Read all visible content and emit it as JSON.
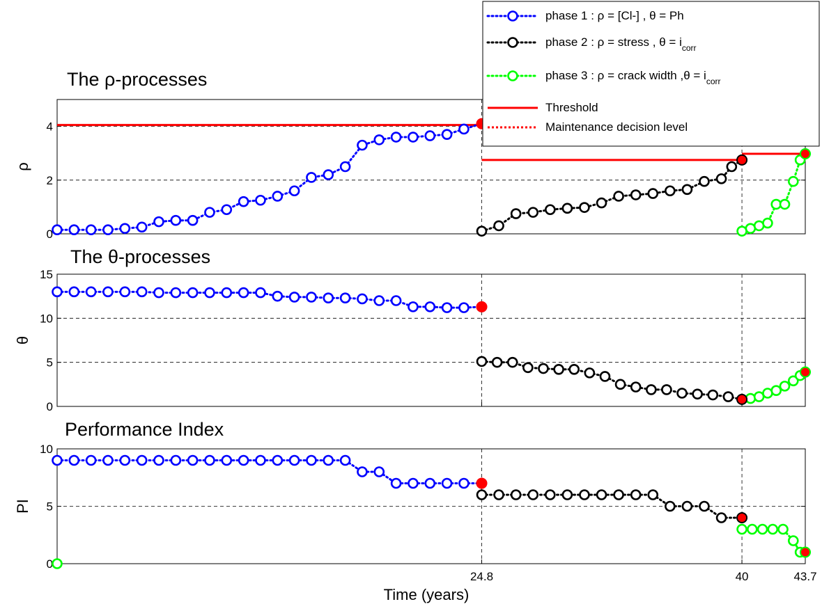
{
  "figure": {
    "xlabel": "Time (years)",
    "xticks": [
      "24.8",
      "40",
      "43.7"
    ]
  },
  "legend": {
    "entries": [
      {
        "pre": "phase 1 : ",
        "sym1": "ρ",
        "mid": " = [Cl-] , ",
        "sym2": "θ",
        "post": "  = Ph",
        "sub": "",
        "color": "#0000ff",
        "style": "dotted-marker"
      },
      {
        "pre": "phase 2 : ",
        "sym1": "ρ",
        "mid": " = stress , ",
        "sym2": "θ",
        "post": "  = i",
        "sub": "corr",
        "color": "#000000",
        "style": "dotted-marker"
      },
      {
        "pre": "phase 3 : ",
        "sym1": "ρ",
        "mid": " = crack width ,",
        "sym2": "θ",
        "post": "  = i",
        "sub": "corr",
        "color": "#00ff00",
        "style": "dotted-marker"
      },
      {
        "pre": "Threshold",
        "sym1": "",
        "mid": "",
        "sym2": "",
        "post": "",
        "sub": "",
        "color": "#ff0000",
        "style": "solid"
      },
      {
        "pre": "Maintenance decision level",
        "sym1": "",
        "mid": "",
        "sym2": "",
        "post": "",
        "sub": "",
        "color": "#ff0000",
        "style": "dotted"
      }
    ]
  },
  "chart_data": [
    {
      "type": "line",
      "title": "The ρ-processes",
      "ylabel": "ρ",
      "ylim": [
        0,
        5
      ],
      "yticks": [
        0,
        2,
        4
      ],
      "xlim": [
        0,
        43.7
      ],
      "grid": "dashed",
      "threshold_color": "#ff0000",
      "thresholds": [
        {
          "x": [
            0,
            24.8
          ],
          "y": 4.05
        },
        {
          "x": [
            24.8,
            40
          ],
          "y": 2.75
        },
        {
          "x": [
            40,
            43.7
          ],
          "y": 2.98
        }
      ],
      "failure_points": [
        {
          "x": 24.8,
          "y": 4.1
        },
        {
          "x": 40,
          "y": 2.75
        },
        {
          "x": 43.7,
          "y": 2.98
        }
      ],
      "series": [
        {
          "color": "#0000ff",
          "x": [
            0,
            0.99,
            1.98,
            2.97,
            3.96,
            4.95,
            5.94,
            6.93,
            7.92,
            8.91,
            9.9,
            10.89,
            11.88,
            12.87,
            13.86,
            14.85,
            15.84,
            16.83,
            17.82,
            18.81,
            19.8,
            20.79,
            21.78,
            22.77,
            23.76,
            24.8
          ],
          "y": [
            0.15,
            0.15,
            0.15,
            0.15,
            0.2,
            0.25,
            0.45,
            0.5,
            0.5,
            0.8,
            0.9,
            1.2,
            1.25,
            1.4,
            1.6,
            2.1,
            2.2,
            2.5,
            3.3,
            3.5,
            3.6,
            3.6,
            3.65,
            3.7,
            3.9,
            4.1
          ]
        },
        {
          "color": "#000000",
          "x": [
            24.8,
            25.8,
            26.8,
            27.8,
            28.8,
            29.8,
            30.8,
            31.8,
            32.8,
            33.8,
            34.8,
            35.8,
            36.8,
            37.8,
            38.8,
            39.4,
            40
          ],
          "y": [
            0.1,
            0.3,
            0.75,
            0.8,
            0.9,
            0.95,
            0.98,
            1.15,
            1.4,
            1.45,
            1.5,
            1.6,
            1.65,
            1.95,
            2.05,
            2.5,
            2.75
          ]
        },
        {
          "color": "#00ff00",
          "x": [
            40,
            40.5,
            41,
            41.5,
            42,
            42.5,
            43,
            43.4,
            43.7
          ],
          "y": [
            0.1,
            0.2,
            0.3,
            0.4,
            1.1,
            1.1,
            1.95,
            2.75,
            2.98
          ]
        }
      ]
    },
    {
      "type": "line",
      "title": "The θ-processes",
      "ylabel": "θ",
      "ylim": [
        0,
        15
      ],
      "yticks": [
        0,
        5,
        10,
        15
      ],
      "xlim": [
        0,
        43.7
      ],
      "grid": "dashed",
      "failure_points": [
        {
          "x": 24.8,
          "y": 11.3
        },
        {
          "x": 40,
          "y": 0.8
        },
        {
          "x": 43.7,
          "y": 3.9
        }
      ],
      "series": [
        {
          "color": "#0000ff",
          "x": [
            0,
            0.99,
            1.98,
            2.97,
            3.96,
            4.95,
            5.94,
            6.93,
            7.92,
            8.91,
            9.9,
            10.89,
            11.88,
            12.87,
            13.86,
            14.85,
            15.84,
            16.83,
            17.82,
            18.81,
            19.8,
            20.79,
            21.78,
            22.77,
            23.76,
            24.8
          ],
          "y": [
            13,
            13,
            13,
            13,
            13,
            13,
            12.9,
            12.9,
            12.9,
            12.9,
            12.9,
            12.9,
            12.9,
            12.5,
            12.4,
            12.4,
            12.3,
            12.3,
            12.2,
            12,
            12,
            11.3,
            11.3,
            11.2,
            11.2,
            11.3
          ]
        },
        {
          "color": "#000000",
          "x": [
            24.8,
            25.7,
            26.6,
            27.5,
            28.4,
            29.3,
            30.2,
            31.1,
            32,
            32.9,
            33.8,
            34.7,
            35.6,
            36.5,
            37.4,
            38.3,
            39.2,
            40
          ],
          "y": [
            5.1,
            5,
            5,
            4.4,
            4.3,
            4.2,
            4.2,
            3.8,
            3.4,
            2.5,
            2.2,
            1.9,
            1.9,
            1.5,
            1.4,
            1.3,
            1.1,
            0.8
          ]
        },
        {
          "color": "#00ff00",
          "x": [
            40,
            40.5,
            41,
            41.5,
            42,
            42.5,
            43,
            43.4,
            43.7
          ],
          "y": [
            0.8,
            0.9,
            1.1,
            1.5,
            1.8,
            2.3,
            2.9,
            3.5,
            3.9
          ]
        }
      ]
    },
    {
      "type": "line",
      "title": "Performance Index",
      "ylabel": "PI",
      "ylim": [
        0,
        10
      ],
      "yticks": [
        0,
        5,
        10
      ],
      "xlim": [
        0,
        43.7
      ],
      "grid": "dashed",
      "failure_points": [
        {
          "x": 24.8,
          "y": 7
        },
        {
          "x": 40,
          "y": 4
        },
        {
          "x": 43.7,
          "y": 1
        }
      ],
      "series": [
        {
          "color": "#0000ff",
          "x": [
            0,
            0.99,
            1.98,
            2.97,
            3.96,
            4.95,
            5.94,
            6.93,
            7.92,
            8.91,
            9.9,
            10.89,
            11.88,
            12.87,
            13.86,
            14.85,
            15.84,
            16.83,
            17.82,
            18.81,
            19.8,
            20.79,
            21.78,
            22.77,
            23.76,
            24.8
          ],
          "y": [
            9,
            9,
            9,
            9,
            9,
            9,
            9,
            9,
            9,
            9,
            9,
            9,
            9,
            9,
            9,
            9,
            9,
            9,
            8,
            8,
            7,
            7,
            7,
            7,
            7,
            7
          ]
        },
        {
          "color": "#000000",
          "x": [
            24.8,
            25.8,
            26.8,
            27.8,
            28.8,
            29.8,
            30.8,
            31.8,
            32.8,
            33.8,
            34.8,
            35.8,
            36.8,
            37.8,
            38.8,
            40
          ],
          "y": [
            6,
            6,
            6,
            6,
            6,
            6,
            6,
            6,
            6,
            6,
            6,
            5,
            5,
            5,
            4,
            4
          ]
        },
        {
          "color": "#00ff00",
          "x": [
            0,
            40,
            40.6,
            41.2,
            41.8,
            42.4,
            43,
            43.4,
            43.7
          ],
          "y": [
            0,
            3,
            3,
            3,
            3,
            3,
            2,
            1,
            1
          ]
        }
      ]
    }
  ]
}
